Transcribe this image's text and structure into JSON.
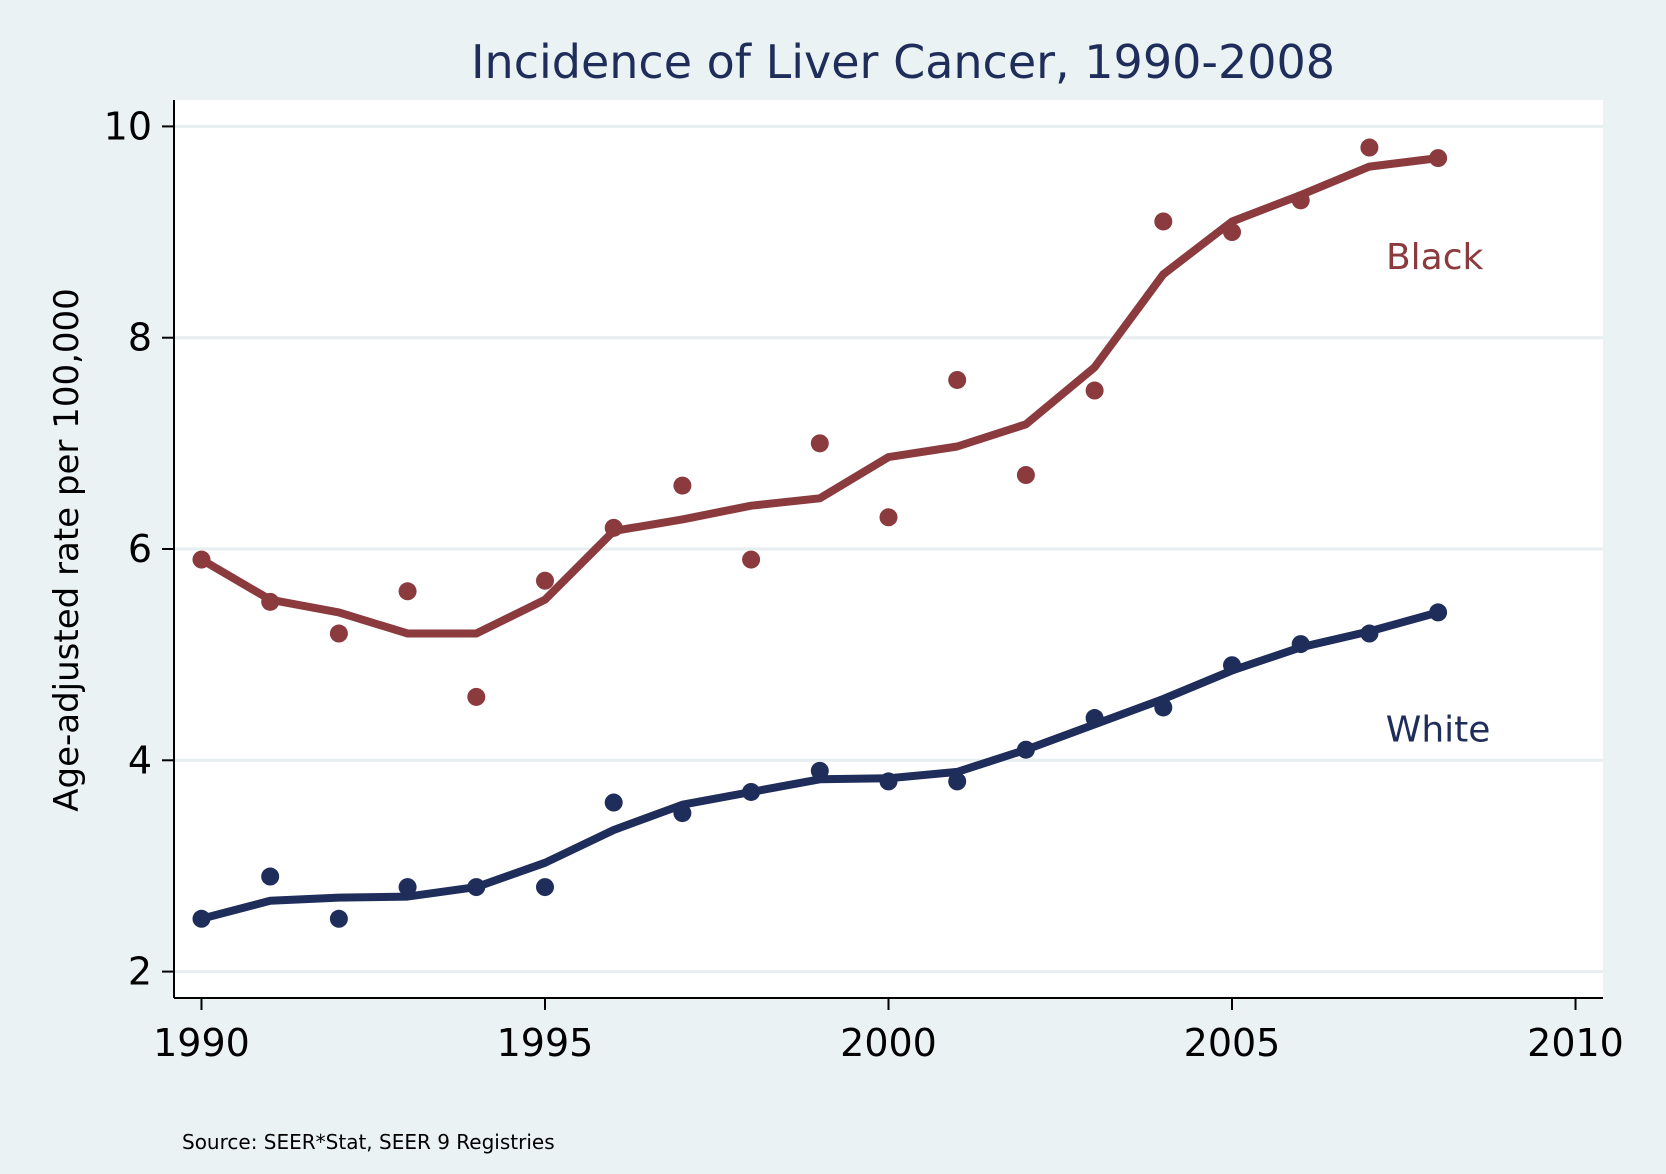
{
  "chart_data": {
    "type": "scatter",
    "title": "Incidence of Liver Cancer, 1990-2008",
    "ylabel": "Age-adjusted rate per 100,000",
    "xlabel": "",
    "xlim": [
      1989.6,
      2010.4
    ],
    "ylim": [
      1.75,
      10.25
    ],
    "xticks": [
      1990,
      1995,
      2000,
      2005,
      2010
    ],
    "yticks": [
      2,
      4,
      6,
      8,
      10
    ],
    "grid": "horizontal",
    "source": "Source: SEER*Stat, SEER 9 Registries",
    "x": [
      1990,
      1991,
      1992,
      1993,
      1994,
      1995,
      1996,
      1997,
      1998,
      1999,
      2000,
      2001,
      2002,
      2003,
      2004,
      2005,
      2006,
      2007,
      2008
    ],
    "series": [
      {
        "name": "Black",
        "color": "#8b3a3e",
        "points": [
          5.9,
          5.5,
          5.2,
          5.6,
          4.6,
          5.7,
          6.2,
          6.6,
          5.9,
          7.0,
          6.3,
          7.6,
          6.7,
          7.5,
          9.1,
          9.0,
          9.3,
          9.8,
          9.7
        ],
        "smoothed": [
          5.9,
          5.52,
          5.4,
          5.2,
          5.2,
          5.52,
          6.17,
          6.28,
          6.41,
          6.48,
          6.87,
          6.97,
          7.18,
          7.72,
          8.6,
          9.1,
          9.35,
          9.62,
          9.7
        ],
        "label_x": 2007.95,
        "label_y": 8.65
      },
      {
        "name": "White",
        "color": "#1f2d5a",
        "points": [
          2.5,
          2.9,
          2.5,
          2.8,
          2.8,
          2.8,
          3.6,
          3.5,
          3.7,
          3.9,
          3.8,
          3.8,
          4.1,
          4.4,
          4.5,
          4.9,
          5.1,
          5.2,
          5.4
        ],
        "smoothed": [
          2.5,
          2.67,
          2.7,
          2.71,
          2.8,
          3.03,
          3.34,
          3.58,
          3.7,
          3.82,
          3.83,
          3.89,
          4.1,
          4.34,
          4.58,
          4.85,
          5.07,
          5.22,
          5.4
        ],
        "label_x": 2008.0,
        "label_y": 4.18
      }
    ]
  }
}
